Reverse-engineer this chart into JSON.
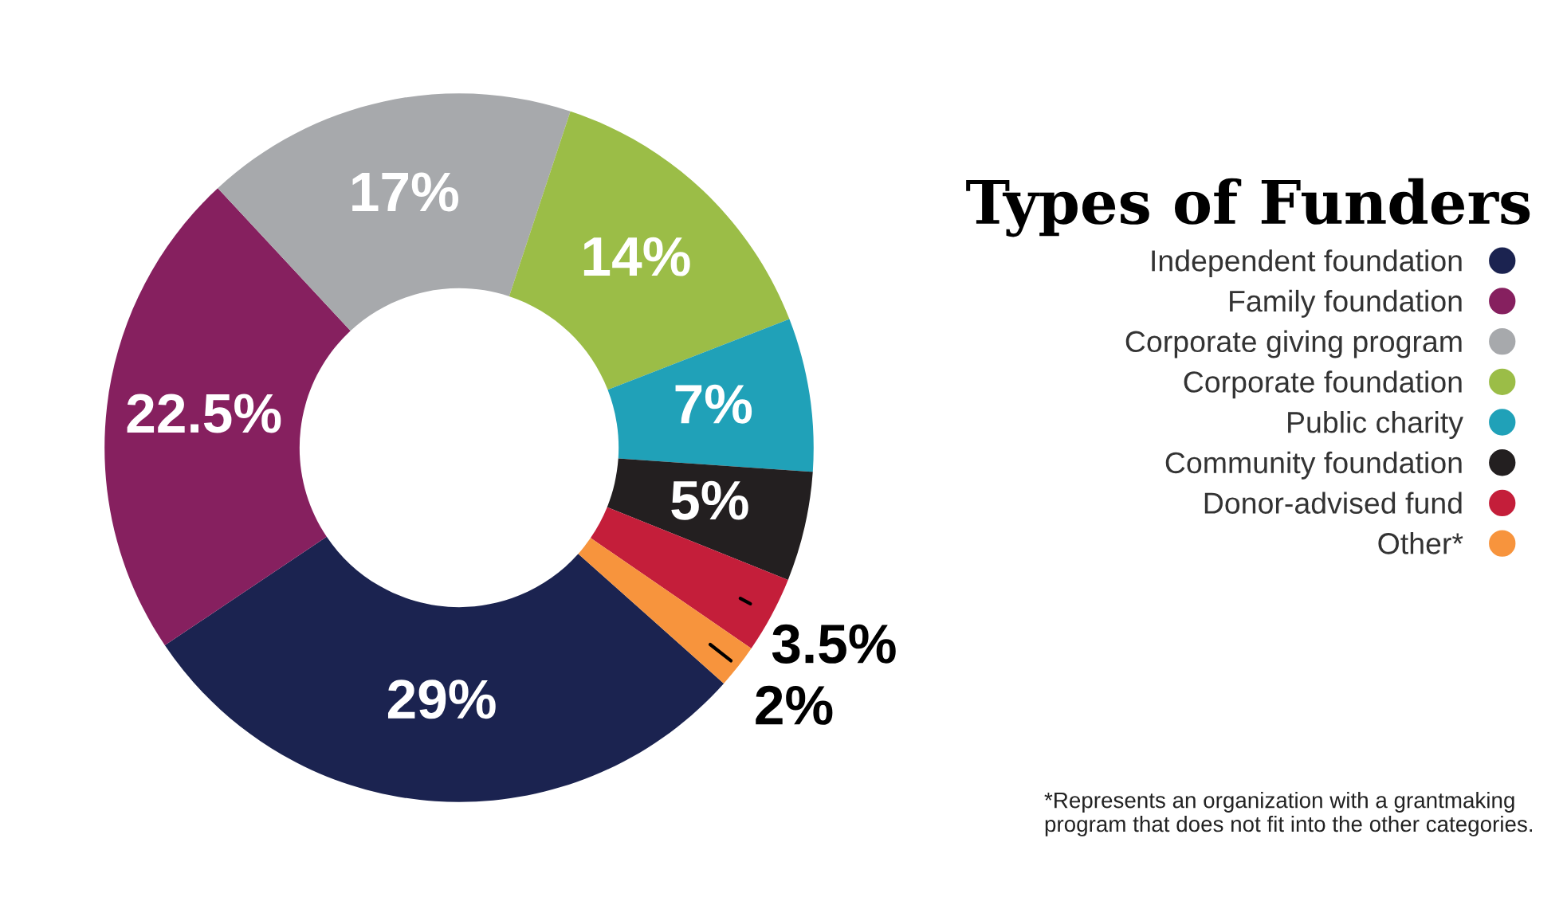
{
  "chart_data": {
    "type": "donut",
    "title": "Types of Funders",
    "categories": [
      "Independent foundation",
      "Family foundation",
      "Corporate giving program",
      "Corporate foundation",
      "Public charity",
      "Community foundation",
      "Donor-advised fund",
      "Other*"
    ],
    "values": [
      29,
      22.5,
      17,
      14,
      7,
      5,
      3.5,
      2
    ],
    "colors": [
      "#1b2350",
      "#86205f",
      "#a7a9ac",
      "#9bbd47",
      "#20a1b8",
      "#231f20",
      "#c41e3a",
      "#f7943d"
    ],
    "value_labels": [
      "29%",
      "22.5%",
      "17%",
      "14%",
      "7%",
      "5%",
      "3.5%",
      "2%"
    ],
    "legend": "right",
    "annotations": [
      "*Represents an organization with a grantmaking program that does not fit into the other categories."
    ]
  }
}
